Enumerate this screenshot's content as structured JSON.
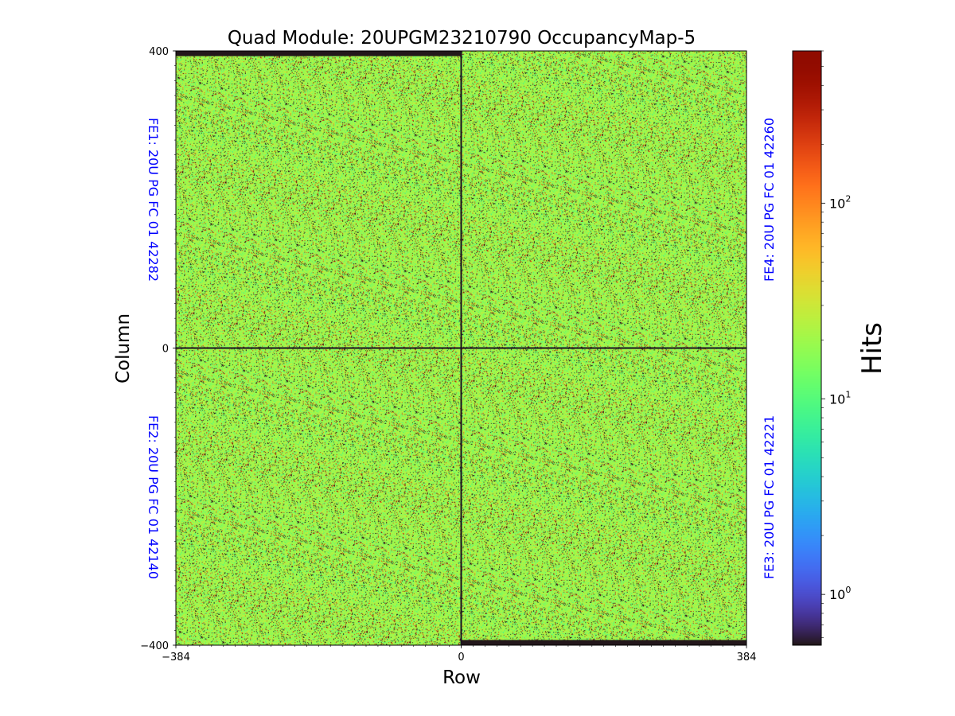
{
  "chart_data": {
    "type": "heatmap",
    "title": "Quad Module: 20UPGM23210790 OccupancyMap-5",
    "xlabel": "Row",
    "ylabel": "Column",
    "xlim": [
      -384,
      384
    ],
    "ylim": [
      -400,
      400
    ],
    "x_ticks": [
      {
        "value": -384,
        "label": "−384"
      },
      {
        "value": 0,
        "label": "0"
      },
      {
        "value": 384,
        "label": "384"
      }
    ],
    "y_ticks": [
      {
        "value": -400,
        "label": "−400"
      },
      {
        "value": 0,
        "label": "0"
      },
      {
        "value": 400,
        "label": "400"
      }
    ],
    "colorbar": {
      "label": "Hits",
      "scale": "log",
      "colormap": "turbo",
      "range": [
        0.55,
        600
      ],
      "ticks": [
        {
          "value": 1,
          "base": "10",
          "exp": "0"
        },
        {
          "value": 10,
          "base": "10",
          "exp": "1"
        },
        {
          "value": 100,
          "base": "10",
          "exp": "2"
        }
      ]
    },
    "frontends": [
      {
        "label": "FE1: 20U PG FC 01 42282",
        "quadrant": "top-left",
        "typical_hits": 20
      },
      {
        "label": "FE4: 20U PG FC 01 42260",
        "quadrant": "top-right",
        "typical_hits": 20
      },
      {
        "label": "FE2: 20U PG FC 01 42140",
        "quadrant": "bottom-left",
        "typical_hits": 20
      },
      {
        "label": "FE3: 20U PG FC 01 42221",
        "quadrant": "bottom-right",
        "typical_hits": 20
      }
    ],
    "dead_strips": [
      {
        "x": [
          -384,
          0
        ],
        "y": [
          393,
          400
        ],
        "hits": 0.55
      },
      {
        "x": [
          0,
          384
        ],
        "y": [
          -400,
          -393
        ],
        "hits": 0.55
      }
    ],
    "dead_lines": [
      {
        "axis": "x",
        "value": 0
      },
      {
        "axis": "y",
        "value": 0
      }
    ],
    "fe_label_color": "#0000ff"
  }
}
